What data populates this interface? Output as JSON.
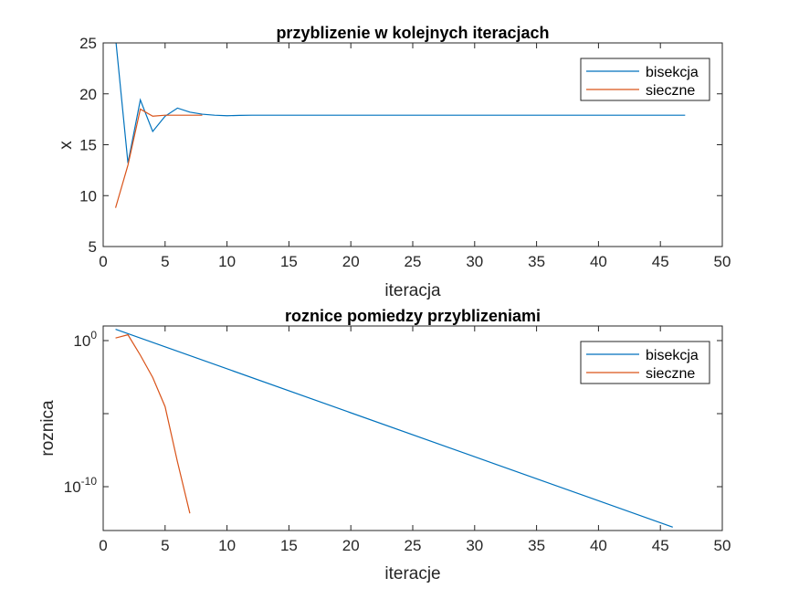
{
  "colors": {
    "bisekcja": "#0072BD",
    "sieczne": "#D95319"
  },
  "chart_data": [
    {
      "type": "line",
      "title": "przyblizenie w kolejnych iteracjach",
      "xlabel": "iteracja",
      "ylabel": "x",
      "xlim": [
        0,
        50
      ],
      "ylim": [
        5,
        25
      ],
      "yscale": "linear",
      "xticks": [
        0,
        5,
        10,
        15,
        20,
        25,
        30,
        35,
        40,
        45,
        50
      ],
      "yticks": [
        5,
        10,
        15,
        20,
        25
      ],
      "ytick_labels": [
        "5",
        "10",
        "15",
        "20",
        "25"
      ],
      "legend": "top-right",
      "series": [
        {
          "name": "bisekcja",
          "x": [
            1,
            2,
            3,
            4,
            5,
            6,
            7,
            8,
            9,
            10,
            11,
            12,
            13,
            14,
            15,
            16,
            17,
            18,
            19,
            20,
            21,
            22,
            23,
            24,
            25,
            26,
            27,
            28,
            29,
            30,
            31,
            32,
            33,
            34,
            35,
            36,
            37,
            38,
            39,
            40,
            41,
            42,
            43,
            44,
            45,
            46,
            47
          ],
          "y": [
            25.5,
            13.2,
            19.4,
            16.3,
            17.8,
            18.6,
            18.2,
            18.0,
            17.9,
            17.85,
            17.88,
            17.9,
            17.9,
            17.9,
            17.9,
            17.9,
            17.9,
            17.9,
            17.9,
            17.9,
            17.9,
            17.9,
            17.9,
            17.9,
            17.9,
            17.9,
            17.9,
            17.9,
            17.9,
            17.9,
            17.9,
            17.9,
            17.9,
            17.9,
            17.9,
            17.9,
            17.9,
            17.9,
            17.9,
            17.9,
            17.9,
            17.9,
            17.9,
            17.9,
            17.9,
            17.9,
            17.9
          ]
        },
        {
          "name": "sieczne",
          "x": [
            1,
            2,
            3,
            4,
            5,
            6,
            7,
            8
          ],
          "y": [
            8.8,
            13.0,
            18.5,
            17.8,
            17.9,
            17.9,
            17.9,
            17.9
          ]
        }
      ]
    },
    {
      "type": "line",
      "title": "roznice pomiedzy przyblizeniami",
      "xlabel": "iteracje",
      "ylabel": "roznica",
      "xlim": [
        0,
        50
      ],
      "ylim": [
        1e-13,
        10
      ],
      "yscale": "log",
      "xticks": [
        0,
        5,
        10,
        15,
        20,
        25,
        30,
        35,
        40,
        45,
        50
      ],
      "yticks": [
        1e-10,
        1e-05,
        1
      ],
      "ytick_labels": [
        "10^-10",
        "",
        "10^0"
      ],
      "legend": "top-right",
      "series": [
        {
          "name": "bisekcja",
          "x": [
            1,
            46
          ],
          "y": [
            6,
            1.7e-13
          ]
        },
        {
          "name": "sieczne",
          "x": [
            1,
            2,
            3,
            4,
            5,
            6,
            7
          ],
          "y": [
            1.5,
            2.5,
            0.1,
            0.003,
            3e-05,
            5e-09,
            1.5e-12
          ]
        }
      ]
    }
  ]
}
